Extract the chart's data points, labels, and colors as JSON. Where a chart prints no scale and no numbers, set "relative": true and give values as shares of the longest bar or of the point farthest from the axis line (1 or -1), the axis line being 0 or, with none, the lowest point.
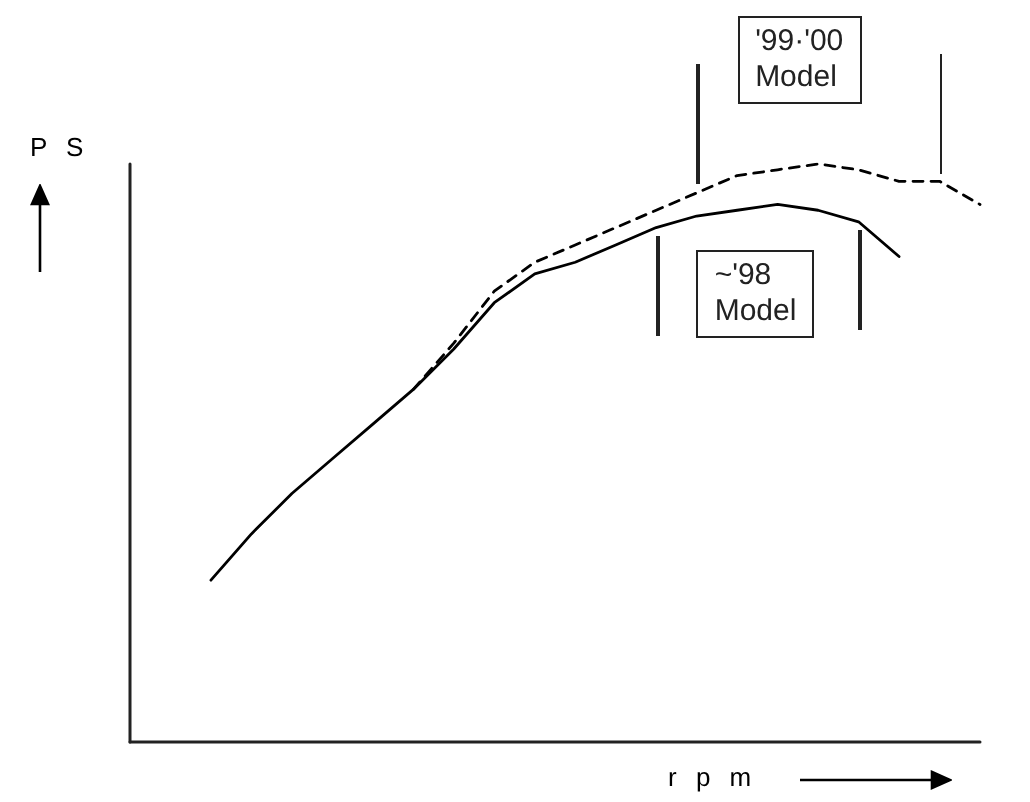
{
  "chart_data": {
    "type": "line",
    "relative": true,
    "xlabel": "r p m",
    "ylabel": "P S",
    "categories": [
      null,
      null,
      null,
      null,
      null,
      null,
      null,
      null,
      null,
      null,
      null,
      null,
      null,
      null,
      null,
      null,
      null,
      null,
      null,
      null,
      null,
      null
    ],
    "series": [
      {
        "name": "~'98 Model",
        "color": "#000000",
        "line_style": "solid",
        "values": [
          null,
          null,
          0.28,
          0.36,
          0.43,
          0.49,
          0.55,
          0.61,
          0.68,
          0.76,
          0.81,
          0.83,
          0.86,
          0.89,
          0.91,
          0.92,
          0.93,
          0.92,
          0.9,
          0.84,
          null,
          null
        ]
      },
      {
        "name": "'99·'00 Model",
        "color": "#000000",
        "line_style": "dashed",
        "values": [
          null,
          null,
          null,
          null,
          null,
          null,
          null,
          0.61,
          0.69,
          0.78,
          0.83,
          0.86,
          0.89,
          0.92,
          0.95,
          0.98,
          0.99,
          1,
          0.99,
          0.97,
          0.97,
          0.93
        ]
      }
    ],
    "grid": false,
    "legend": false,
    "marker": "none"
  }
}
